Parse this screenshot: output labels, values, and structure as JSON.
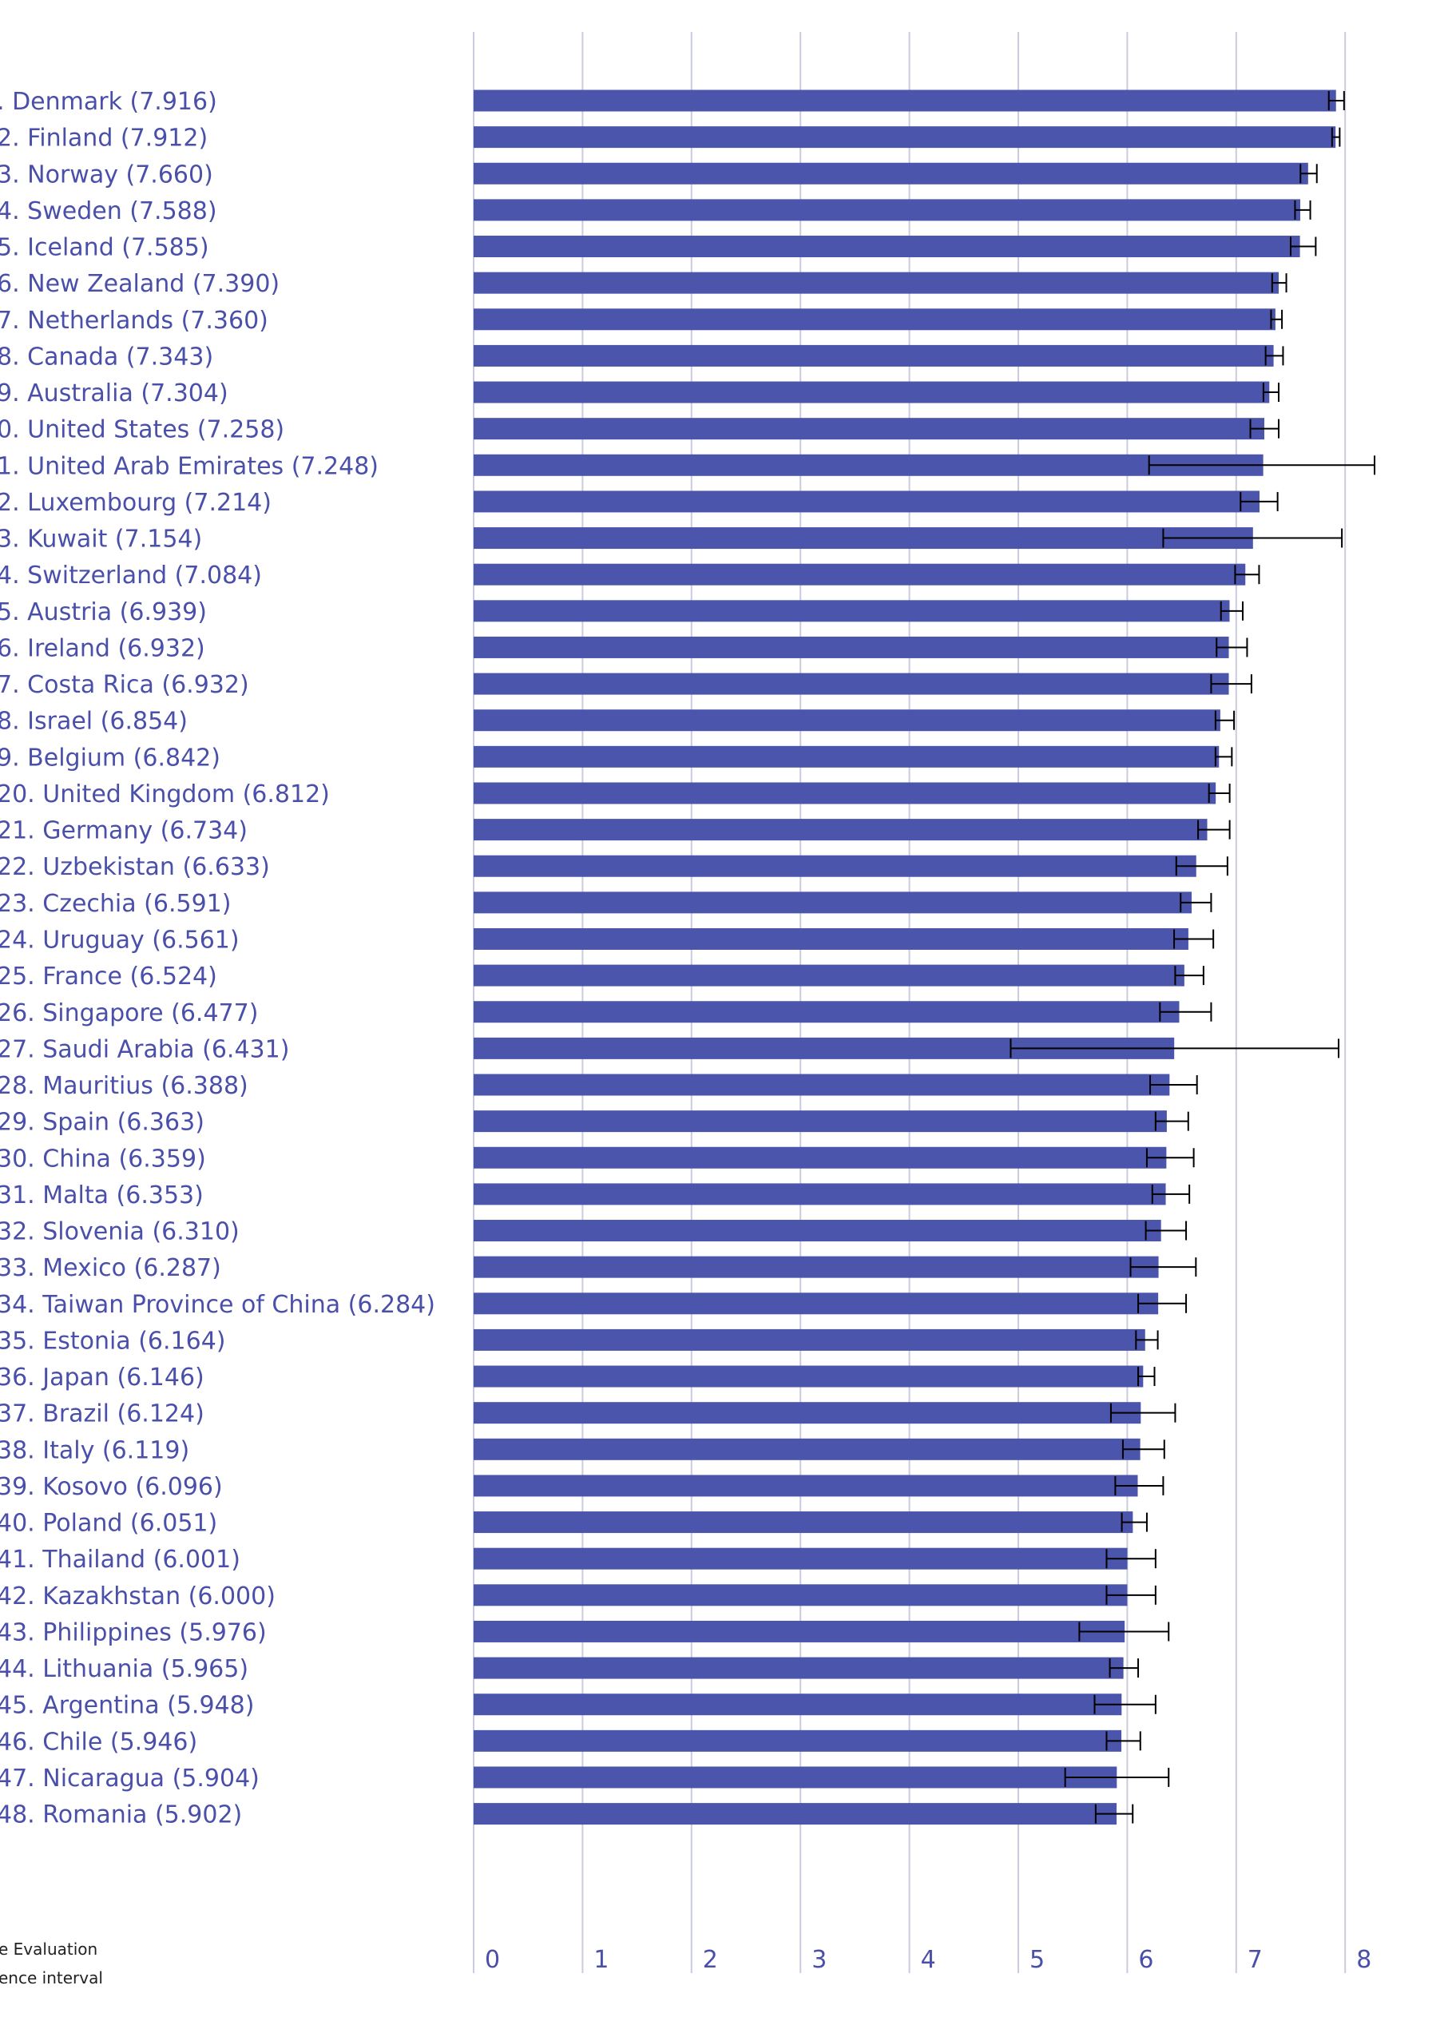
{
  "chart_data": {
    "type": "bar",
    "orientation": "horizontal",
    "grid": true,
    "xlim": [
      0,
      8
    ],
    "x_ticks": [
      "0",
      "1",
      "2",
      "3",
      "4",
      "5",
      "6",
      "7",
      "8"
    ],
    "legend": {
      "placement": "bottom-left",
      "items": [
        "e Evaluation",
        "ence interval"
      ]
    },
    "colors": {
      "bar": "#4b55ab",
      "grid": "#c9ccdf",
      "error": "#000000",
      "text": "#4a4faa"
    },
    "rows": [
      {
        "label": ".  Denmark (7.916)",
        "value": 7.916,
        "ci": [
          7.85,
          7.99
        ]
      },
      {
        "label": "2.  Finland (7.912)",
        "value": 7.912,
        "ci": [
          7.88,
          7.95
        ]
      },
      {
        "label": "3.  Norway (7.660)",
        "value": 7.66,
        "ci": [
          7.59,
          7.74
        ]
      },
      {
        "label": "4.  Sweden (7.588)",
        "value": 7.588,
        "ci": [
          7.54,
          7.68
        ]
      },
      {
        "label": "5.  Iceland (7.585)",
        "value": 7.585,
        "ci": [
          7.5,
          7.73
        ]
      },
      {
        "label": "6.  New Zealand (7.390)",
        "value": 7.39,
        "ci": [
          7.33,
          7.46
        ]
      },
      {
        "label": "7.  Netherlands (7.360)",
        "value": 7.36,
        "ci": [
          7.32,
          7.42
        ]
      },
      {
        "label": "8.  Canada (7.343)",
        "value": 7.343,
        "ci": [
          7.27,
          7.43
        ]
      },
      {
        "label": "9.  Australia (7.304)",
        "value": 7.304,
        "ci": [
          7.25,
          7.39
        ]
      },
      {
        "label": "0.  United States (7.258)",
        "value": 7.258,
        "ci": [
          7.13,
          7.39
        ]
      },
      {
        "label": "1.  United Arab Emirates (7.248)",
        "value": 7.248,
        "ci": [
          6.2,
          8.27
        ]
      },
      {
        "label": "2.  Luxembourg (7.214)",
        "value": 7.214,
        "ci": [
          7.04,
          7.38
        ]
      },
      {
        "label": "3.  Kuwait (7.154)",
        "value": 7.154,
        "ci": [
          6.33,
          7.97
        ]
      },
      {
        "label": "4.  Switzerland (7.084)",
        "value": 7.084,
        "ci": [
          6.99,
          7.21
        ]
      },
      {
        "label": "5.  Austria (6.939)",
        "value": 6.939,
        "ci": [
          6.86,
          7.06
        ]
      },
      {
        "label": "6.  Ireland (6.932)",
        "value": 6.932,
        "ci": [
          6.82,
          7.1
        ]
      },
      {
        "label": "7.  Costa Rica (6.932)",
        "value": 6.932,
        "ci": [
          6.77,
          7.14
        ]
      },
      {
        "label": "8.  Israel (6.854)",
        "value": 6.854,
        "ci": [
          6.81,
          6.98
        ]
      },
      {
        "label": "9.  Belgium (6.842)",
        "value": 6.842,
        "ci": [
          6.81,
          6.96
        ]
      },
      {
        "label": "20.  United Kingdom (6.812)",
        "value": 6.812,
        "ci": [
          6.75,
          6.94
        ]
      },
      {
        "label": "21.  Germany (6.734)",
        "value": 6.734,
        "ci": [
          6.65,
          6.94
        ]
      },
      {
        "label": "22.  Uzbekistan (6.633)",
        "value": 6.633,
        "ci": [
          6.45,
          6.92
        ]
      },
      {
        "label": "23.  Czechia (6.591)",
        "value": 6.591,
        "ci": [
          6.49,
          6.77
        ]
      },
      {
        "label": "24.  Uruguay (6.561)",
        "value": 6.561,
        "ci": [
          6.43,
          6.79
        ]
      },
      {
        "label": "25.  France (6.524)",
        "value": 6.524,
        "ci": [
          6.44,
          6.7
        ]
      },
      {
        "label": "26.  Singapore (6.477)",
        "value": 6.477,
        "ci": [
          6.3,
          6.77
        ]
      },
      {
        "label": "27.  Saudi Arabia (6.431)",
        "value": 6.431,
        "ci": [
          4.93,
          7.94
        ]
      },
      {
        "label": "28.  Mauritius (6.388)",
        "value": 6.388,
        "ci": [
          6.21,
          6.64
        ]
      },
      {
        "label": "29.  Spain (6.363)",
        "value": 6.363,
        "ci": [
          6.26,
          6.56
        ]
      },
      {
        "label": "30.  China (6.359)",
        "value": 6.359,
        "ci": [
          6.18,
          6.61
        ]
      },
      {
        "label": "31.  Malta (6.353)",
        "value": 6.353,
        "ci": [
          6.23,
          6.57
        ]
      },
      {
        "label": "32.  Slovenia (6.310)",
        "value": 6.31,
        "ci": [
          6.17,
          6.54
        ]
      },
      {
        "label": "33.  Mexico (6.287)",
        "value": 6.287,
        "ci": [
          6.03,
          6.63
        ]
      },
      {
        "label": "34.  Taiwan Province of China (6.284)",
        "value": 6.284,
        "ci": [
          6.1,
          6.54
        ]
      },
      {
        "label": "35.  Estonia (6.164)",
        "value": 6.164,
        "ci": [
          6.08,
          6.28
        ]
      },
      {
        "label": "36.  Japan (6.146)",
        "value": 6.146,
        "ci": [
          6.1,
          6.25
        ]
      },
      {
        "label": "37.  Brazil (6.124)",
        "value": 6.124,
        "ci": [
          5.85,
          6.44
        ]
      },
      {
        "label": "38.  Italy (6.119)",
        "value": 6.119,
        "ci": [
          5.96,
          6.34
        ]
      },
      {
        "label": "39.  Kosovo (6.096)",
        "value": 6.096,
        "ci": [
          5.89,
          6.33
        ]
      },
      {
        "label": "40.  Poland (6.051)",
        "value": 6.051,
        "ci": [
          5.95,
          6.18
        ]
      },
      {
        "label": "41.  Thailand (6.001)",
        "value": 6.001,
        "ci": [
          5.81,
          6.26
        ]
      },
      {
        "label": "42.  Kazakhstan (6.000)",
        "value": 6.0,
        "ci": [
          5.81,
          6.26
        ]
      },
      {
        "label": "43.  Philippines (5.976)",
        "value": 5.976,
        "ci": [
          5.56,
          6.38
        ]
      },
      {
        "label": "44.  Lithuania (5.965)",
        "value": 5.965,
        "ci": [
          5.84,
          6.1
        ]
      },
      {
        "label": "45.  Argentina (5.948)",
        "value": 5.948,
        "ci": [
          5.7,
          6.26
        ]
      },
      {
        "label": "46.  Chile (5.946)",
        "value": 5.946,
        "ci": [
          5.81,
          6.12
        ]
      },
      {
        "label": "47.  Nicaragua (5.904)",
        "value": 5.904,
        "ci": [
          5.43,
          6.38
        ]
      },
      {
        "label": "48.  Romania (5.902)",
        "value": 5.902,
        "ci": [
          5.71,
          6.05
        ]
      }
    ]
  }
}
